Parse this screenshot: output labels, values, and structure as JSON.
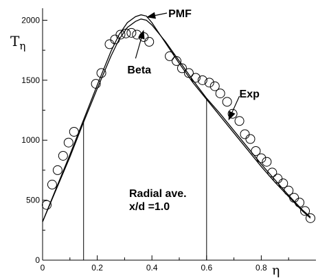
{
  "chart_data": {
    "type": "line",
    "title": "",
    "xlabel": "η",
    "ylabel": "Tη",
    "ylabel_main": "T",
    "ylabel_sub": "η",
    "xlim": [
      0,
      1.0
    ],
    "ylim": [
      0,
      2100
    ],
    "xticks": [
      0,
      0.2,
      0.4,
      0.6,
      0.8
    ],
    "xtick_labels": [
      "0",
      "0.2",
      "0.4",
      "0.6",
      "0.8"
    ],
    "yticks": [
      0,
      500,
      1000,
      1500,
      2000
    ],
    "ytick_labels": [
      "0",
      "500",
      "1000",
      "1500",
      "2000"
    ],
    "grid": false,
    "legend": "none",
    "series": [
      {
        "name": "PMF",
        "kind": "line",
        "x": [
          0.0,
          0.05,
          0.1,
          0.15,
          0.2,
          0.25,
          0.28,
          0.31,
          0.34,
          0.36,
          0.38,
          0.4,
          0.45,
          0.5,
          0.55,
          0.6,
          0.65,
          0.7,
          0.75,
          0.8,
          0.85,
          0.9,
          0.95,
          0.98
        ],
        "y": [
          320,
          600,
          880,
          1170,
          1460,
          1740,
          1880,
          1980,
          2030,
          2045,
          2035,
          1980,
          1810,
          1640,
          1480,
          1340,
          1200,
          1060,
          920,
          780,
          650,
          530,
          410,
          350
        ]
      },
      {
        "name": "Beta",
        "kind": "line",
        "x": [
          0.0,
          0.05,
          0.1,
          0.15,
          0.2,
          0.25,
          0.28,
          0.31,
          0.34,
          0.36,
          0.38,
          0.4,
          0.45,
          0.5,
          0.55,
          0.6,
          0.65,
          0.7,
          0.75,
          0.8,
          0.85,
          0.9,
          0.95,
          0.98
        ],
        "y": [
          320,
          590,
          860,
          1150,
          1430,
          1700,
          1840,
          1940,
          1990,
          2010,
          2000,
          1960,
          1820,
          1660,
          1500,
          1350,
          1220,
          1080,
          940,
          800,
          670,
          540,
          420,
          360
        ]
      },
      {
        "name": "Exp",
        "kind": "scatter",
        "x": [
          0.015,
          0.035,
          0.055,
          0.075,
          0.095,
          0.115,
          0.195,
          0.215,
          0.245,
          0.265,
          0.285,
          0.305,
          0.325,
          0.345,
          0.37,
          0.39,
          0.465,
          0.49,
          0.51,
          0.535,
          0.56,
          0.585,
          0.61,
          0.63,
          0.65,
          0.675,
          0.695,
          0.72,
          0.74,
          0.76,
          0.78,
          0.8,
          0.82,
          0.84,
          0.86,
          0.88,
          0.9,
          0.92,
          0.94,
          0.96,
          0.98
        ],
        "y": [
          460,
          630,
          750,
          870,
          980,
          1070,
          1470,
          1560,
          1800,
          1840,
          1880,
          1890,
          1895,
          1880,
          1860,
          1820,
          1700,
          1660,
          1600,
          1560,
          1520,
          1500,
          1480,
          1450,
          1390,
          1320,
          1220,
          1160,
          1050,
          1010,
          910,
          850,
          820,
          730,
          680,
          640,
          580,
          520,
          480,
          410,
          350
        ]
      }
    ],
    "vertical_lines": [
      {
        "x": 0.15,
        "y_to": 1160
      },
      {
        "x": 0.6,
        "y_to": 1350
      }
    ],
    "annotations": [
      {
        "text": "PMF",
        "arrow_to": [
          0.38,
          2025
        ],
        "label_at": [
          0.46,
          2060
        ]
      },
      {
        "text": "Beta",
        "arrow_to": [
          0.37,
          1920
        ],
        "label_at": [
          0.31,
          1590
        ]
      },
      {
        "text": "Exp",
        "arrow_to": [
          0.68,
          1165
        ],
        "label_at": [
          0.72,
          1390
        ]
      }
    ],
    "text_block": [
      "Radial ave.",
      "x/d =1.0"
    ]
  }
}
